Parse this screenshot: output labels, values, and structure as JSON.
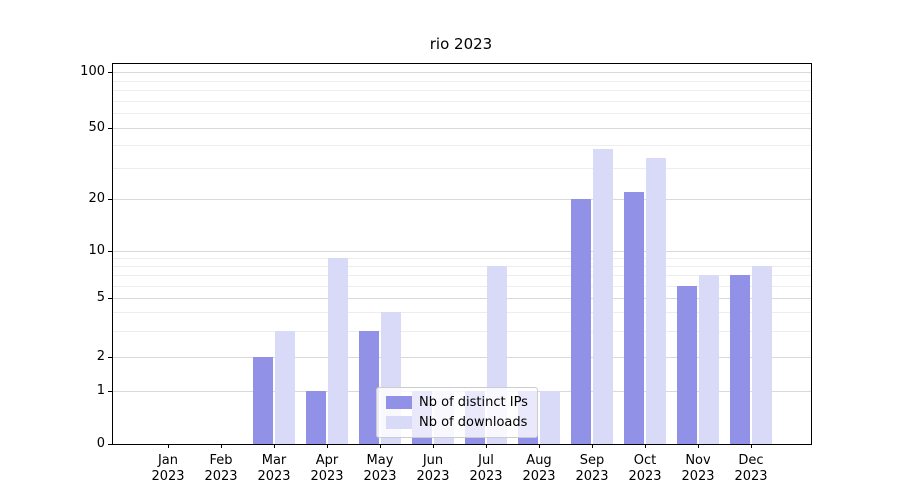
{
  "chart_data": {
    "type": "bar",
    "title": "rio 2023",
    "xlabel": "",
    "ylabel": "",
    "yscale": "symlog",
    "ylim": [
      0,
      110
    ],
    "yticks": [
      0,
      1,
      2,
      5,
      10,
      20,
      50,
      100
    ],
    "minor_yticks": [
      3,
      4,
      6,
      7,
      8,
      9,
      30,
      40,
      60,
      70,
      80,
      90
    ],
    "grid": true,
    "legend_position": "lower center",
    "categories": [
      "Jan 2023",
      "Feb 2023",
      "Mar 2023",
      "Apr 2023",
      "May 2023",
      "Jun 2023",
      "Jul 2023",
      "Aug 2023",
      "Sep 2023",
      "Oct 2023",
      "Nov 2023",
      "Dec 2023"
    ],
    "series": [
      {
        "name": "Nb of distinct IPs",
        "color": "#9191e8",
        "values": [
          0,
          0,
          2,
          1,
          3,
          1,
          1,
          1,
          20,
          22,
          6,
          7
        ]
      },
      {
        "name": "Nb of downloads",
        "color": "#d9d9f8",
        "values": [
          0,
          0,
          3,
          9,
          4,
          1,
          8,
          1,
          38,
          34,
          7,
          8
        ]
      }
    ]
  },
  "colors": {
    "background": "#ffffff",
    "grid_major": "#d9d9d9",
    "grid_minor": "#ededed",
    "axis": "#000000",
    "legend_border": "#cccccc"
  }
}
